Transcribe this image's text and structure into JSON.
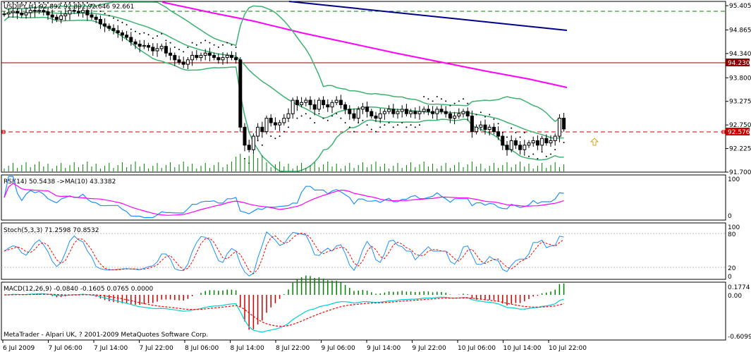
{
  "main": {
    "header": "USDJPY,H1  92.892 92.892 92.646 92.661",
    "price_scale": [
      "95.405",
      "94.865",
      "94.340",
      "93.800",
      "93.275",
      "92.750",
      "92.225",
      "91.700"
    ],
    "red_level_label": "94.230",
    "current_price_label": "92.576"
  },
  "rsi": {
    "header": "RSI(14) 50.5438  ->MA(10) 43.3382",
    "scale": [
      "100",
      "0"
    ]
  },
  "stoch": {
    "header": "Stoch(5,3,3) 71.2598 70.8532",
    "scale": [
      "100",
      "80",
      "20",
      "0"
    ]
  },
  "macd": {
    "header": "MACD(12,26,9) -0.0840 -0.1605 0.0765 0.0000",
    "scale": [
      "0.1774",
      "0.00",
      "-0.6099"
    ],
    "footer": "MetaTrader - Alpari UK, ? 2001-2009 MetaQuotes Software Corp."
  },
  "time_axis": [
    "6 Jul 2009",
    "7 Jul 06:00",
    "7 Jul 14:00",
    "7 Jul 22:00",
    "8 Jul 06:00",
    "8 Jul 14:00",
    "8 Jul 22:00",
    "9 Jul 06:00",
    "9 Jul 14:00",
    "9 Jul 22:00",
    "10 Jul 06:00",
    "10 Jul 14:00",
    "10 Jul 22:00"
  ],
  "colors": {
    "bollinger": "#3CB371",
    "sma_magenta": "#FF00FF",
    "sma_blue": "#00008B",
    "resistance": "#8B0000",
    "dash_green": "#008000",
    "rsi_line": "#1E90FF",
    "rsi_ma": "#FF00FF",
    "stoch_main": "#1E90FF",
    "stoch_signal": "#FF0000",
    "macd_pos": "#008000",
    "macd_neg": "#CC0000",
    "macd_line": "#00CED1",
    "macd_signal": "#FF0000"
  },
  "chart_data": [
    {
      "type": "candlestick",
      "title": "USDJPY,H1",
      "ohlc_last": {
        "open": 92.892,
        "high": 92.892,
        "low": 92.646,
        "close": 92.661
      },
      "ylim": [
        91.7,
        95.5
      ],
      "y_ticks": [
        95.405,
        94.865,
        94.34,
        93.8,
        93.275,
        92.75,
        92.225,
        91.7
      ],
      "horizontal_levels": [
        94.23,
        92.576,
        95.405
      ],
      "close_series": [
        95.22,
        95.25,
        95.28,
        95.24,
        95.2,
        95.25,
        95.3,
        95.28,
        95.3,
        95.27,
        95.2,
        95.15,
        95.1,
        95.18,
        95.22,
        95.3,
        95.28,
        95.25,
        95.3,
        95.2,
        95.15,
        95.1,
        95.0,
        94.95,
        94.9,
        94.85,
        94.8,
        94.75,
        94.7,
        94.6,
        94.55,
        94.5,
        94.52,
        94.48,
        94.4,
        94.45,
        94.5,
        94.35,
        94.3,
        94.2,
        94.15,
        94.1,
        94.2,
        94.3,
        94.25,
        94.3,
        94.35,
        94.3,
        94.25,
        94.2,
        94.25,
        94.3,
        94.25,
        94.2,
        92.7,
        92.3,
        92.2,
        92.5,
        92.7,
        92.6,
        92.9,
        92.8,
        92.75,
        92.8,
        92.9,
        93.0,
        93.3,
        93.2,
        93.25,
        93.3,
        93.2,
        93.1,
        93.3,
        93.2,
        93.15,
        93.25,
        93.3,
        93.2,
        93.1,
        93.0,
        92.9,
        93.1,
        93.15,
        93.05,
        92.95,
        92.9,
        93.0,
        93.05,
        93.1,
        93.0,
        93.05,
        93.1,
        93.0,
        93.05,
        93.0,
        93.05,
        93.1,
        93.05,
        93.0,
        93.1,
        93.05,
        93.0,
        92.9,
        92.95,
        93.0,
        93.05,
        92.95,
        92.6,
        92.7,
        92.75,
        92.65,
        92.7,
        92.6,
        92.5,
        92.3,
        92.2,
        92.4,
        92.3,
        92.2,
        92.3,
        92.35,
        92.4,
        92.3,
        92.45,
        92.35,
        92.4,
        92.5,
        92.9,
        92.66
      ]
    },
    {
      "type": "line",
      "title": "RSI(14)",
      "series": [
        {
          "name": "RSI(14)",
          "last": 50.5438
        },
        {
          "name": "MA(10)",
          "last": 43.3382
        }
      ],
      "ylim": [
        0,
        100
      ]
    },
    {
      "type": "line",
      "title": "Stoch(5,3,3)",
      "series": [
        {
          "name": "%K",
          "last": 71.2598
        },
        {
          "name": "%D",
          "last": 70.8532
        }
      ],
      "ylim": [
        0,
        100
      ],
      "levels": [
        80,
        20
      ]
    },
    {
      "type": "bar",
      "title": "MACD(12,26,9)",
      "series": [
        {
          "name": "MACD",
          "last": -0.084
        },
        {
          "name": "Signal",
          "last": -0.1605
        },
        {
          "name": "OsMA",
          "last": 0.0765
        }
      ],
      "ylim": [
        -0.6099,
        0.1774
      ]
    }
  ]
}
